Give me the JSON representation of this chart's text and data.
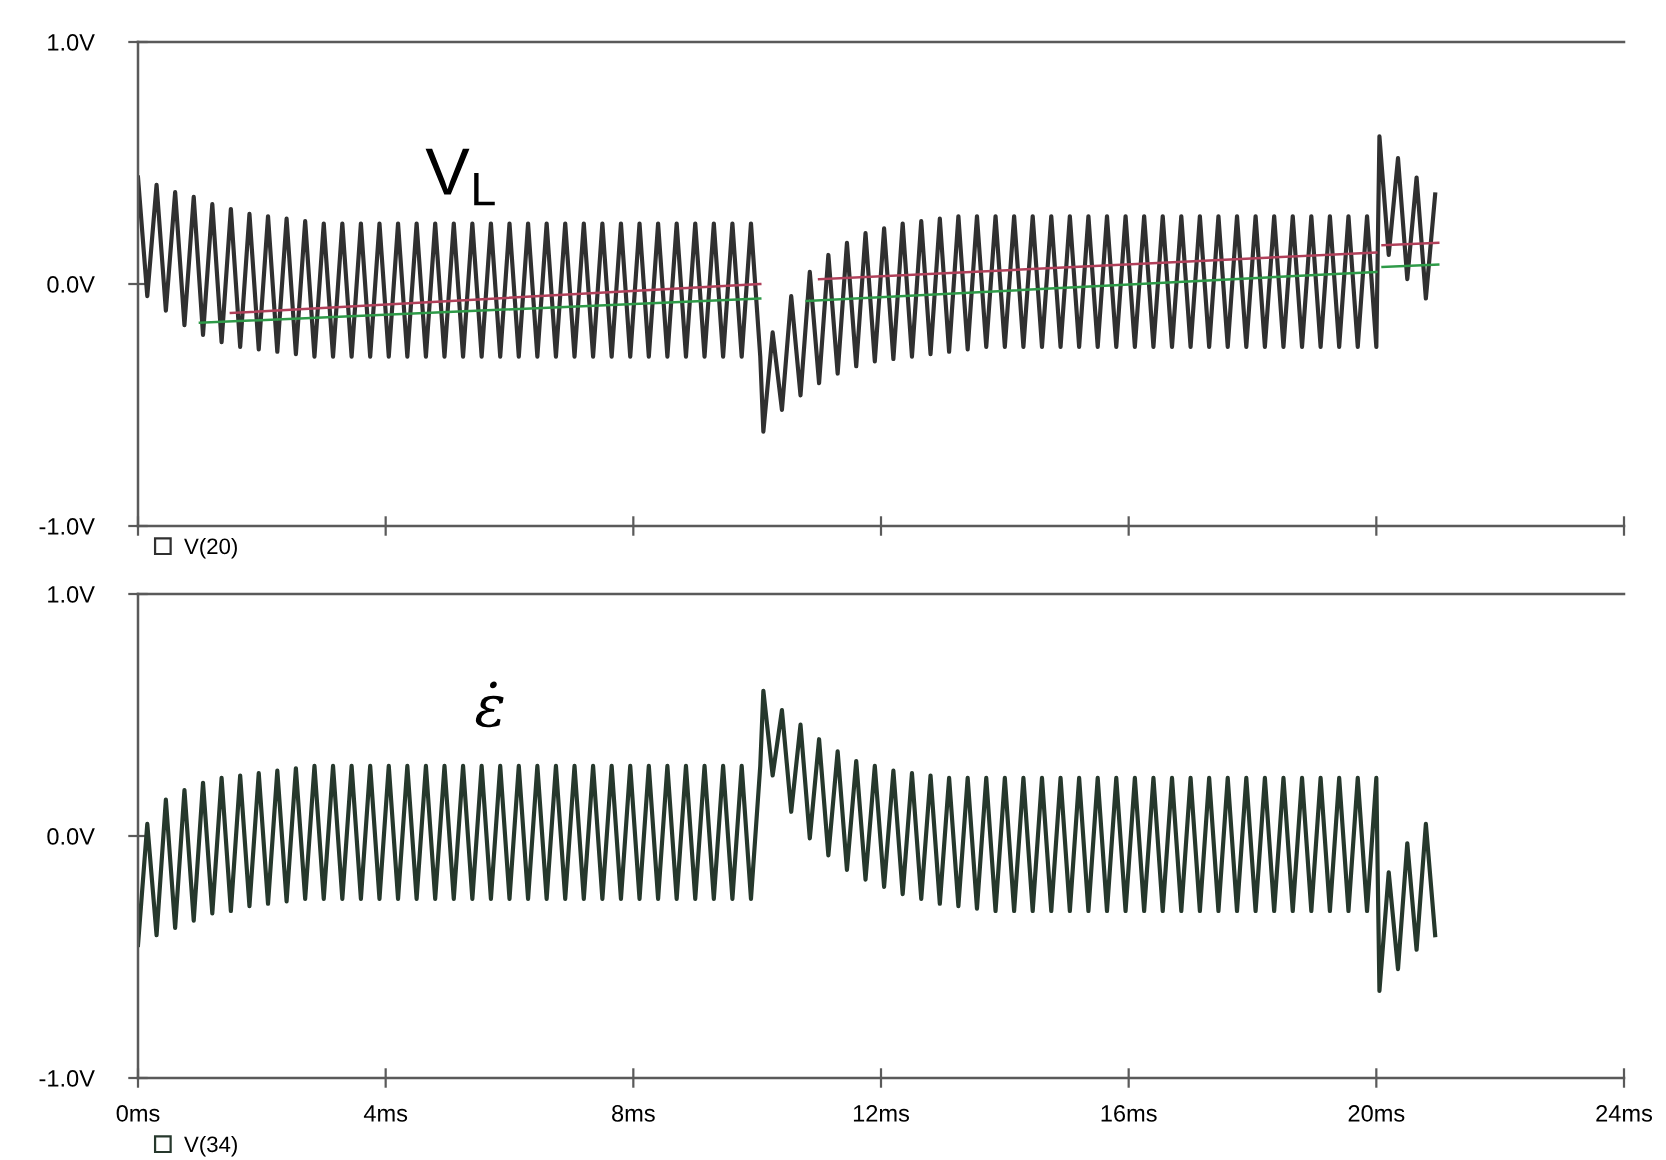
{
  "chart_data": [
    {
      "type": "line",
      "annotations": [
        "V$_{L}$"
      ],
      "xlim": [
        0,
        24
      ],
      "xticks": [
        0,
        4,
        8,
        12,
        16,
        20,
        24
      ],
      "ylim": [
        -1,
        1
      ],
      "yticks": [
        {
          "value": -1,
          "label": "-1.0V"
        },
        {
          "value": 0,
          "label": "0.0V"
        },
        {
          "value": 1,
          "label": "1.0V"
        }
      ],
      "tick_labels": "y",
      "legend": "bottom left",
      "x": [
        0,
        0.15,
        0.3,
        0.45,
        0.6,
        0.75,
        0.9,
        1.05,
        1.2,
        1.35,
        1.5,
        1.65,
        1.8,
        1.95,
        2.1,
        2.25,
        2.4,
        2.55,
        2.7,
        2.85,
        3.0,
        3.15,
        3.3,
        3.45,
        3.6,
        3.75,
        3.9,
        4.05,
        4.2,
        4.35,
        4.5,
        4.65,
        4.8,
        4.95,
        5.1,
        5.25,
        5.4,
        5.55,
        5.7,
        5.85,
        6.0,
        6.15,
        6.3,
        6.45,
        6.6,
        6.75,
        6.9,
        7.05,
        7.2,
        7.35,
        7.5,
        7.65,
        7.8,
        7.95,
        8.1,
        8.25,
        8.4,
        8.55,
        8.7,
        8.85,
        9.0,
        9.15,
        9.3,
        9.45,
        9.6,
        9.75,
        9.9,
        10.05,
        10.1,
        10.25,
        10.4,
        10.55,
        10.7,
        10.85,
        11.0,
        11.15,
        11.3,
        11.45,
        11.6,
        11.75,
        11.9,
        12.05,
        12.2,
        12.35,
        12.5,
        12.65,
        12.8,
        12.95,
        13.1,
        13.25,
        13.4,
        13.55,
        13.7,
        13.85,
        14.0,
        14.15,
        14.3,
        14.45,
        14.6,
        14.75,
        14.9,
        15.05,
        15.2,
        15.35,
        15.5,
        15.65,
        15.8,
        15.95,
        16.1,
        16.25,
        16.4,
        16.55,
        16.7,
        16.85,
        17.0,
        17.15,
        17.3,
        17.45,
        17.6,
        17.75,
        17.9,
        18.05,
        18.2,
        18.35,
        18.5,
        18.65,
        18.8,
        18.95,
        19.1,
        19.25,
        19.4,
        19.55,
        19.7,
        19.85,
        20.0,
        20.05,
        20.2,
        20.35,
        20.5,
        20.65,
        20.8,
        20.95
      ],
      "series": [
        {
          "name": "V(20)",
          "color": "#303030",
          "values": [
            0.44,
            -0.05,
            0.41,
            -0.11,
            0.38,
            -0.17,
            0.36,
            -0.21,
            0.33,
            -0.24,
            0.31,
            -0.26,
            0.29,
            -0.27,
            0.28,
            -0.28,
            0.27,
            -0.29,
            0.26,
            -0.3,
            0.25,
            -0.3,
            0.25,
            -0.3,
            0.25,
            -0.3,
            0.25,
            -0.3,
            0.25,
            -0.3,
            0.25,
            -0.3,
            0.25,
            -0.3,
            0.25,
            -0.3,
            0.25,
            -0.3,
            0.25,
            -0.3,
            0.25,
            -0.3,
            0.25,
            -0.3,
            0.25,
            -0.3,
            0.25,
            -0.3,
            0.25,
            -0.3,
            0.25,
            -0.3,
            0.25,
            -0.3,
            0.25,
            -0.3,
            0.25,
            -0.3,
            0.25,
            -0.3,
            0.25,
            -0.3,
            0.25,
            -0.3,
            0.25,
            -0.3,
            0.25,
            -0.3,
            -0.61,
            -0.2,
            -0.52,
            -0.05,
            -0.46,
            0.05,
            -0.41,
            0.12,
            -0.37,
            0.17,
            -0.34,
            0.21,
            -0.32,
            0.23,
            -0.31,
            0.25,
            -0.3,
            0.26,
            -0.29,
            0.27,
            -0.28,
            0.28,
            -0.27,
            0.28,
            -0.26,
            0.28,
            -0.26,
            0.28,
            -0.26,
            0.28,
            -0.26,
            0.28,
            -0.26,
            0.28,
            -0.26,
            0.28,
            -0.26,
            0.28,
            -0.26,
            0.28,
            -0.26,
            0.28,
            -0.26,
            0.28,
            -0.26,
            0.28,
            -0.26,
            0.28,
            -0.26,
            0.28,
            -0.26,
            0.28,
            -0.26,
            0.28,
            -0.26,
            0.28,
            -0.26,
            0.28,
            -0.26,
            0.28,
            -0.26,
            0.28,
            -0.26,
            0.28,
            -0.26,
            0.28,
            -0.26,
            0.61,
            0.12,
            0.52,
            0.02,
            0.44,
            -0.06,
            0.37
          ]
        },
        {
          "color": "#2e9a48",
          "x": [
            1.0,
            10.05,
            10.06,
            10.8,
            20.0,
            20.02,
            20.1,
            21.0
          ],
          "values": [
            -0.16,
            -0.06,
            null,
            -0.07,
            0.05,
            null,
            0.07,
            0.08
          ]
        },
        {
          "color": "#b0405a",
          "x": [
            1.5,
            10.05,
            10.06,
            11.0,
            20.0,
            20.02,
            20.1,
            21.0
          ],
          "values": [
            -0.12,
            0.0,
            null,
            0.02,
            0.13,
            null,
            0.16,
            0.17
          ]
        }
      ]
    },
    {
      "type": "line",
      "annotations": [
        "ε̇"
      ],
      "xlim": [
        0,
        24
      ],
      "xticks": [
        {
          "value": 0,
          "label": "0ms"
        },
        {
          "value": 4,
          "label": "4ms"
        },
        {
          "value": 8,
          "label": "8ms"
        },
        {
          "value": 12,
          "label": "12ms"
        },
        {
          "value": 16,
          "label": "16ms"
        },
        {
          "value": 20,
          "label": "20ms"
        },
        {
          "value": 24,
          "label": "24ms"
        }
      ],
      "ylim": [
        -1,
        1
      ],
      "yticks": [
        {
          "value": -1,
          "label": "-1.0V"
        },
        {
          "value": 0,
          "label": "0.0V"
        },
        {
          "value": 1,
          "label": "1.0V"
        }
      ],
      "legend": "bottom left",
      "x": [
        0,
        0.15,
        0.3,
        0.45,
        0.6,
        0.75,
        0.9,
        1.05,
        1.2,
        1.35,
        1.5,
        1.65,
        1.8,
        1.95,
        2.1,
        2.25,
        2.4,
        2.55,
        2.7,
        2.85,
        3.0,
        3.15,
        3.3,
        3.45,
        3.6,
        3.75,
        3.9,
        4.05,
        4.2,
        4.35,
        4.5,
        4.65,
        4.8,
        4.95,
        5.1,
        5.25,
        5.4,
        5.55,
        5.7,
        5.85,
        6.0,
        6.15,
        6.3,
        6.45,
        6.6,
        6.75,
        6.9,
        7.05,
        7.2,
        7.35,
        7.5,
        7.65,
        7.8,
        7.95,
        8.1,
        8.25,
        8.4,
        8.55,
        8.7,
        8.85,
        9.0,
        9.15,
        9.3,
        9.45,
        9.6,
        9.75,
        9.9,
        10.05,
        10.1,
        10.25,
        10.4,
        10.55,
        10.7,
        10.85,
        11.0,
        11.15,
        11.3,
        11.45,
        11.6,
        11.75,
        11.9,
        12.05,
        12.2,
        12.35,
        12.5,
        12.65,
        12.8,
        12.95,
        13.1,
        13.25,
        13.4,
        13.55,
        13.7,
        13.85,
        14.0,
        14.15,
        14.3,
        14.45,
        14.6,
        14.75,
        14.9,
        15.05,
        15.2,
        15.35,
        15.5,
        15.65,
        15.8,
        15.95,
        16.1,
        16.25,
        16.4,
        16.55,
        16.7,
        16.85,
        17.0,
        17.15,
        17.3,
        17.45,
        17.6,
        17.75,
        17.9,
        18.05,
        18.2,
        18.35,
        18.5,
        18.65,
        18.8,
        18.95,
        19.1,
        19.25,
        19.4,
        19.55,
        19.7,
        19.85,
        20.0,
        20.05,
        20.2,
        20.35,
        20.5,
        20.65,
        20.8,
        20.95
      ],
      "series": [
        {
          "name": "V(34)",
          "color": "#26382c",
          "values": [
            -0.45,
            0.05,
            -0.41,
            0.15,
            -0.38,
            0.19,
            -0.35,
            0.22,
            -0.32,
            0.24,
            -0.31,
            0.25,
            -0.29,
            0.26,
            -0.28,
            0.27,
            -0.27,
            0.28,
            -0.26,
            0.29,
            -0.26,
            0.29,
            -0.26,
            0.29,
            -0.26,
            0.29,
            -0.26,
            0.29,
            -0.26,
            0.29,
            -0.26,
            0.29,
            -0.26,
            0.29,
            -0.26,
            0.29,
            -0.26,
            0.29,
            -0.26,
            0.29,
            -0.26,
            0.29,
            -0.26,
            0.29,
            -0.26,
            0.29,
            -0.26,
            0.29,
            -0.26,
            0.29,
            -0.26,
            0.29,
            -0.26,
            0.29,
            -0.26,
            0.29,
            -0.26,
            0.29,
            -0.26,
            0.29,
            -0.26,
            0.29,
            -0.26,
            0.29,
            -0.26,
            0.29,
            -0.26,
            0.29,
            0.6,
            0.25,
            0.52,
            0.1,
            0.46,
            -0.01,
            0.4,
            -0.08,
            0.35,
            -0.14,
            0.31,
            -0.18,
            0.29,
            -0.21,
            0.27,
            -0.24,
            0.26,
            -0.26,
            0.25,
            -0.28,
            0.24,
            -0.29,
            0.24,
            -0.3,
            0.24,
            -0.31,
            0.24,
            -0.31,
            0.24,
            -0.31,
            0.24,
            -0.31,
            0.24,
            -0.31,
            0.24,
            -0.31,
            0.24,
            -0.31,
            0.24,
            -0.31,
            0.24,
            -0.31,
            0.24,
            -0.31,
            0.24,
            -0.31,
            0.24,
            -0.31,
            0.24,
            -0.31,
            0.24,
            -0.31,
            0.24,
            -0.31,
            0.24,
            -0.31,
            0.24,
            -0.31,
            0.24,
            -0.31,
            0.24,
            -0.31,
            0.24,
            -0.31,
            0.24,
            -0.31,
            0.24,
            -0.64,
            -0.15,
            -0.55,
            -0.03,
            -0.47,
            0.05,
            -0.41
          ]
        }
      ]
    }
  ]
}
